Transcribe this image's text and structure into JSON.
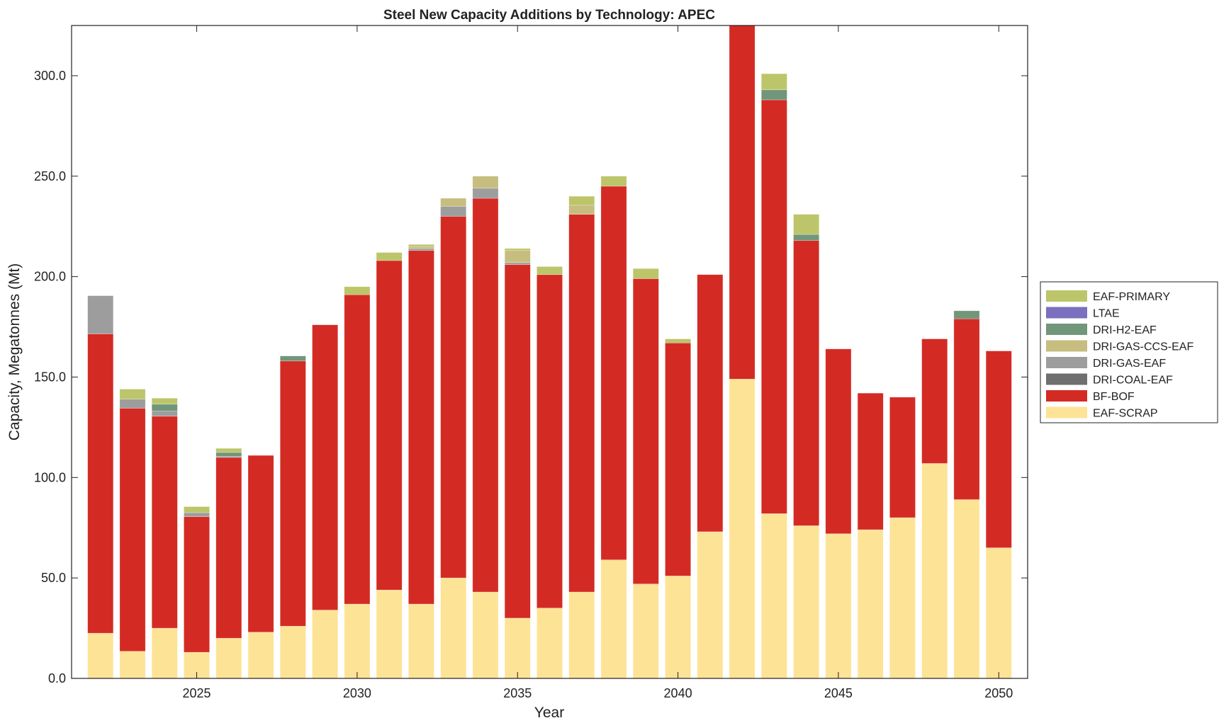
{
  "chart_data": {
    "type": "bar",
    "stacked": true,
    "title": "Steel New Capacity Additions by Technology: APEC",
    "xlabel": "Year",
    "ylabel": "Capacity, Megatonnes (Mt)",
    "ylim": [
      0,
      325
    ],
    "xlim": [
      2021.1,
      2050.9
    ],
    "yticks": [
      "0.0",
      "50.0",
      "100.0",
      "150.0",
      "200.0",
      "250.0",
      "300.0"
    ],
    "xticks": [
      "2025",
      "2030",
      "2035",
      "2040",
      "2045",
      "2050"
    ],
    "grid": false,
    "legend_position": "right",
    "categories": [
      2022,
      2023,
      2024,
      2025,
      2026,
      2027,
      2028,
      2029,
      2030,
      2031,
      2032,
      2033,
      2034,
      2035,
      2036,
      2037,
      2038,
      2039,
      2040,
      2041,
      2042,
      2043,
      2044,
      2045,
      2046,
      2047,
      2048,
      2049,
      2050
    ],
    "series": [
      {
        "name": "EAF-SCRAP",
        "color": "#fde395",
        "values": [
          22.5,
          13.5,
          25,
          13,
          20,
          23,
          26,
          34,
          37,
          44,
          37,
          50,
          43,
          30,
          35,
          43,
          59,
          47,
          51,
          73,
          149,
          82,
          76,
          72,
          74,
          80,
          107,
          89,
          65
        ]
      },
      {
        "name": "BF-BOF",
        "color": "#d32b24",
        "values": [
          149,
          121,
          105.5,
          67.5,
          90,
          88,
          132,
          142,
          154,
          164,
          176,
          180,
          196,
          176,
          166,
          188,
          186,
          152,
          116,
          128,
          185,
          206,
          142,
          92,
          68,
          60,
          62,
          90,
          98
        ]
      },
      {
        "name": "DRI-COAL-EAF",
        "color": "#6f6f6f",
        "values": [
          0,
          0,
          0,
          0,
          0,
          0,
          0,
          0,
          0,
          0,
          0,
          0,
          0,
          0,
          0,
          0,
          0,
          0,
          0,
          0,
          0,
          0,
          0,
          0,
          0,
          0,
          0,
          0,
          0
        ]
      },
      {
        "name": "DRI-GAS-EAF",
        "color": "#9d9d9d",
        "values": [
          19,
          4.5,
          2.5,
          2,
          0.5,
          0,
          0,
          0,
          0,
          0,
          1,
          5,
          5,
          1,
          0,
          0,
          0,
          0,
          0,
          0,
          0,
          0,
          0,
          0,
          0,
          0,
          0,
          0,
          0
        ]
      },
      {
        "name": "DRI-GAS-CCS-EAF",
        "color": "#c6bd7f",
        "values": [
          0,
          0,
          0,
          0,
          0,
          0,
          0,
          0,
          0,
          0,
          1,
          4,
          6,
          6,
          0,
          4.5,
          0,
          0,
          0,
          0,
          0,
          0,
          0,
          0,
          0,
          0,
          0,
          0,
          0
        ]
      },
      {
        "name": "DRI-H2-EAF",
        "color": "#71967a",
        "values": [
          0,
          0,
          3.5,
          0,
          2,
          0,
          2.5,
          0,
          0,
          0,
          0,
          0,
          0,
          0,
          0,
          0,
          0,
          0,
          0,
          0,
          0,
          5,
          3,
          0,
          0,
          0,
          0,
          4,
          0
        ]
      },
      {
        "name": "LTAE",
        "color": "#7b6fbf",
        "values": [
          0,
          0,
          0,
          0,
          0,
          0,
          0,
          0,
          0,
          0,
          0,
          0,
          0,
          0,
          0,
          0,
          0,
          0,
          0,
          0,
          0,
          0,
          0,
          0,
          0,
          0,
          0,
          0,
          0
        ]
      },
      {
        "name": "EAF-PRIMARY",
        "color": "#bcc56a",
        "values": [
          0,
          5,
          3,
          3,
          2,
          0,
          0,
          0,
          4,
          4,
          1,
          0,
          0,
          1,
          4,
          4.5,
          5,
          5,
          2,
          0,
          0,
          8,
          10,
          0,
          0,
          0,
          0,
          0,
          0
        ]
      }
    ]
  }
}
